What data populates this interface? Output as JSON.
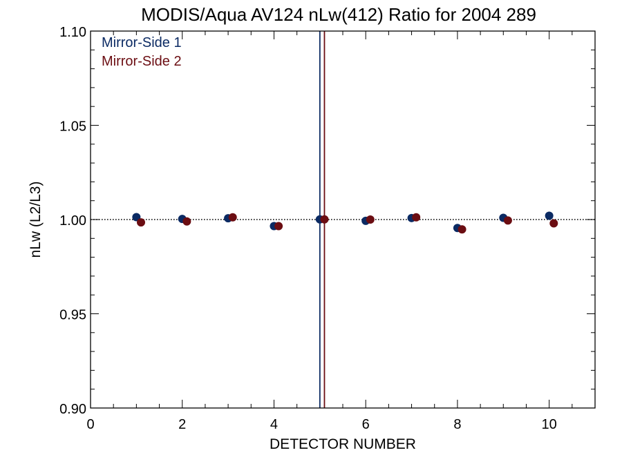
{
  "chart_data": {
    "type": "scatter",
    "title": "MODIS/Aqua AV124 nLw(412) Ratio for 2004 289",
    "xlabel": "DETECTOR NUMBER",
    "ylabel": "nLw (L2/L3)",
    "xlim": [
      0,
      11
    ],
    "ylim": [
      0.9,
      1.1
    ],
    "x_ticks": [
      0,
      2,
      4,
      6,
      8,
      10
    ],
    "x_tick_labels": [
      "0",
      "2",
      "4",
      "6",
      "8",
      "10"
    ],
    "y_ticks": [
      0.9,
      0.95,
      1.0,
      1.05,
      1.1
    ],
    "y_tick_labels": [
      "0.90",
      "0.95",
      "1.00",
      "1.05",
      "1.10"
    ],
    "x_minor_step": 0.5,
    "y_minor_step": 0.01,
    "reference_line": {
      "y": 1.0,
      "style": "dotted",
      "color": "#000000"
    },
    "vertical_lines": [
      {
        "x": 5.0,
        "color": "#0b2a63"
      },
      {
        "x": 5.1,
        "color": "#6b0d12"
      }
    ],
    "legend_position": "top-left",
    "series": [
      {
        "name": "Mirror-Side 1",
        "color": "#0b2a63",
        "x": [
          1,
          2,
          3,
          4,
          5,
          6,
          7,
          8,
          9,
          10
        ],
        "y": [
          1.0013,
          1.0003,
          1.0007,
          0.9965,
          1.0001,
          0.9993,
          1.0008,
          0.9955,
          1.0009,
          1.002
        ]
      },
      {
        "name": "Mirror-Side 2",
        "color": "#6b0d12",
        "x": [
          1.1,
          2.1,
          3.1,
          4.1,
          5.1,
          6.1,
          7.1,
          8.1,
          9.1,
          10.1
        ],
        "y": [
          0.9985,
          0.999,
          1.0012,
          0.9965,
          1.0001,
          1.0,
          1.0012,
          0.9948,
          0.9995,
          0.998
        ]
      }
    ]
  }
}
